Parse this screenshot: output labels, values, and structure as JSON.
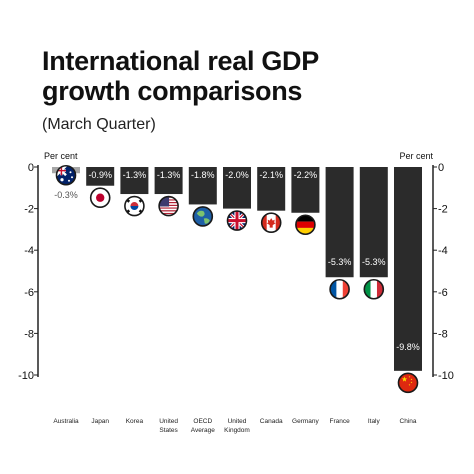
{
  "header": {
    "title_line1": "International real GDP",
    "title_line2": "growth comparisons",
    "subtitle": "(March Quarter)"
  },
  "chart_data": {
    "type": "bar",
    "ylabel_left": "Per cent",
    "ylabel_right": "Per cent",
    "ylim": [
      -10,
      0
    ],
    "yticks": [
      0,
      -2,
      -4,
      -6,
      -8,
      -10
    ],
    "grid": false,
    "categories": [
      "Australia",
      "Japan",
      "Korea",
      "United States",
      "OECD Average",
      "United Kingdom",
      "Canada",
      "Germany",
      "France",
      "Italy",
      "China"
    ],
    "category_labels": [
      [
        "Australia"
      ],
      [
        "Japan"
      ],
      [
        "Korea"
      ],
      [
        "United",
        "States"
      ],
      [
        "OECD",
        "Average"
      ],
      [
        "United",
        "Kingdom"
      ],
      [
        "Canada"
      ],
      [
        "Germany"
      ],
      [
        "France"
      ],
      [
        "Italy"
      ],
      [
        "China"
      ]
    ],
    "values": [
      -0.3,
      -0.9,
      -1.3,
      -1.3,
      -1.8,
      -2.0,
      -2.1,
      -2.2,
      -5.3,
      -5.3,
      -9.8
    ],
    "data_labels": [
      "-0.3%",
      "-0.9%",
      "-1.3%",
      "-1.3%",
      "-1.8%",
      "-2.0%",
      "-2.1%",
      "-2.2%",
      "-5.3%",
      "-5.3%",
      "-9.8%"
    ],
    "flags": [
      "australia-flag",
      "japan-flag",
      "korea-flag",
      "usa-flag",
      "oecd-globe",
      "uk-flag",
      "canada-flag",
      "germany-flag",
      "france-flag",
      "italy-flag",
      "china-flag"
    ],
    "colors": {
      "bar": "#2b2b2b",
      "highlight_bar": "#a6a6a6",
      "axis": "#222222",
      "label_on_bar": "#ffffff"
    }
  }
}
